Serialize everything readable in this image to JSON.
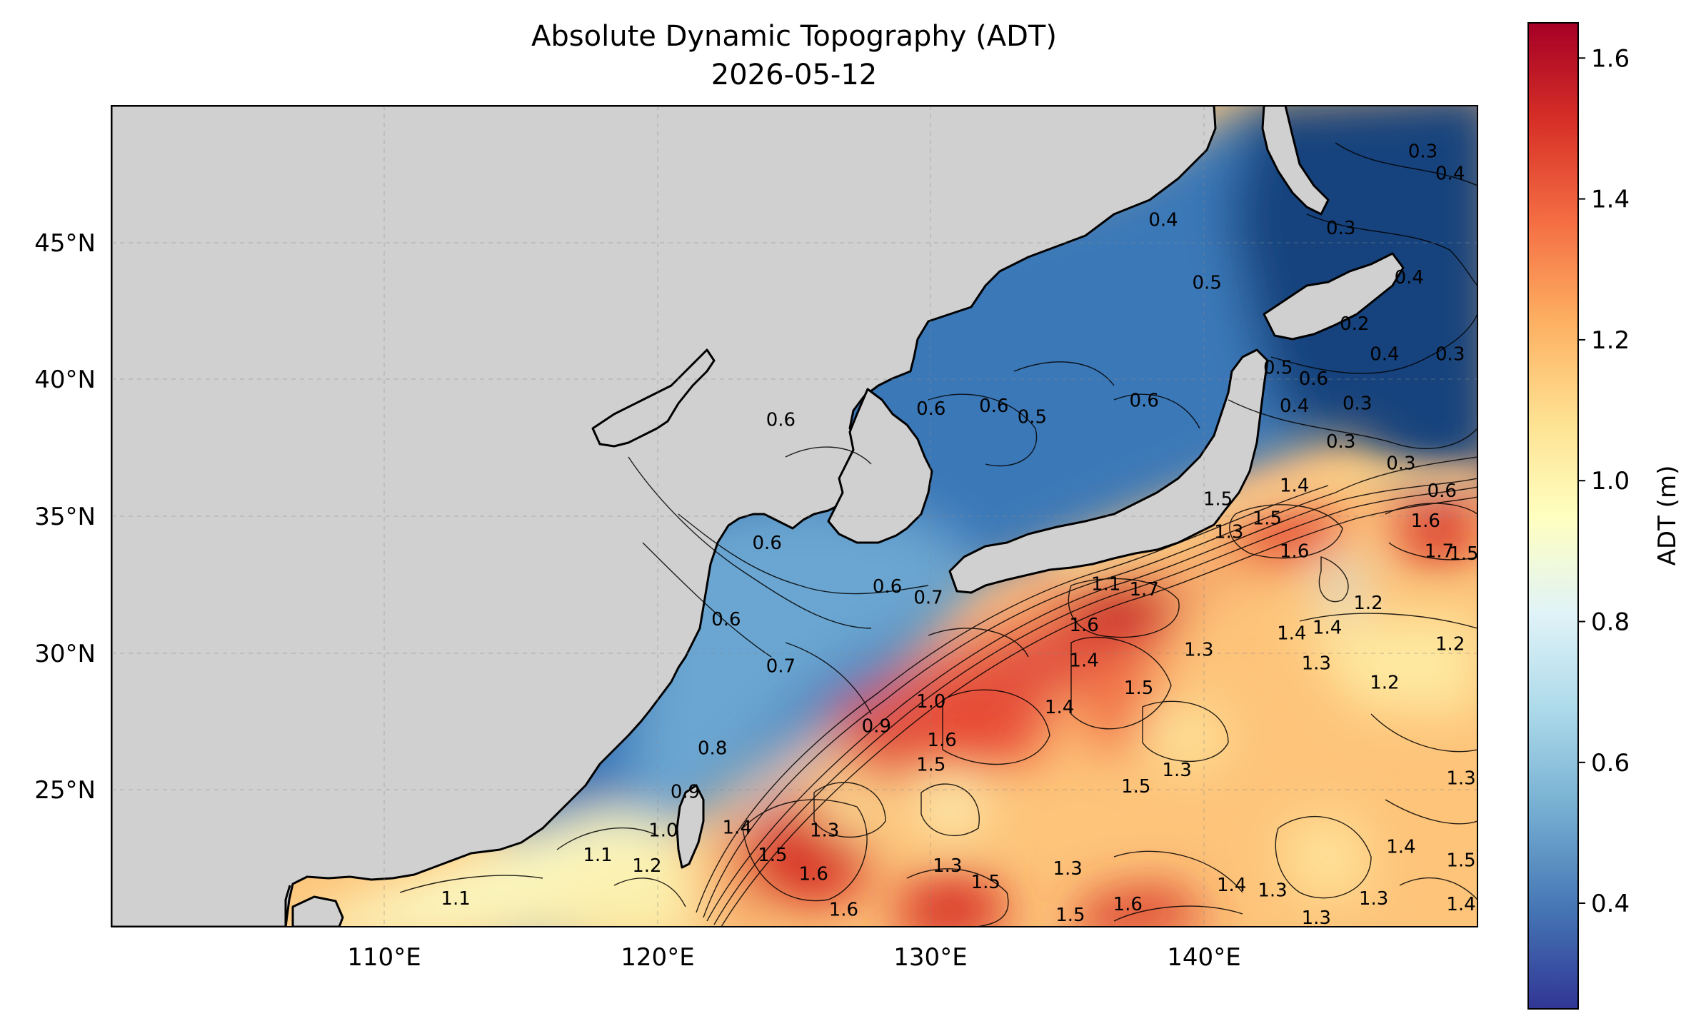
{
  "chart_data": {
    "type": "heatmap",
    "title": "Absolute Dynamic Topography (ADT)",
    "subtitle": "2026-05-12",
    "x_axis": {
      "range": [
        100,
        150
      ],
      "ticks": [
        {
          "value": 110,
          "label": "110°E"
        },
        {
          "value": 120,
          "label": "120°E"
        },
        {
          "value": 130,
          "label": "130°E"
        },
        {
          "value": 140,
          "label": "140°E"
        }
      ]
    },
    "y_axis": {
      "range": [
        20,
        50
      ],
      "ticks": [
        {
          "value": 25,
          "label": "25°N"
        },
        {
          "value": 30,
          "label": "30°N"
        },
        {
          "value": 35,
          "label": "35°N"
        },
        {
          "value": 40,
          "label": "40°N"
        },
        {
          "value": 45,
          "label": "45°N"
        }
      ]
    },
    "gridlines": true,
    "colorbar": {
      "label": "ADT (m)",
      "min": 0.25,
      "max": 1.65,
      "placement": "right",
      "colormap": "RdYlBu_r",
      "stops": [
        "#313695",
        "#4575b4",
        "#74add1",
        "#abd9e9",
        "#e0f3f8",
        "#ffffbf",
        "#fee090",
        "#fdae61",
        "#f46d43",
        "#d73027",
        "#a50026"
      ],
      "ticks": [
        {
          "value": 0.4,
          "label": "0.4"
        },
        {
          "value": 0.6,
          "label": "0.6"
        },
        {
          "value": 0.8,
          "label": "0.8"
        },
        {
          "value": 1.0,
          "label": "1.0"
        },
        {
          "value": 1.2,
          "label": "1.2"
        },
        {
          "value": 1.4,
          "label": "1.4"
        },
        {
          "value": 1.6,
          "label": "1.6"
        }
      ]
    },
    "land_color": "#d0d0d0",
    "contour_labels": [
      {
        "lon": 124.5,
        "lat": 38.5,
        "text": "0.6"
      },
      {
        "lon": 124.0,
        "lat": 34.0,
        "text": "0.6"
      },
      {
        "lon": 122.5,
        "lat": 31.2,
        "text": "0.6"
      },
      {
        "lon": 124.5,
        "lat": 29.5,
        "text": "0.7"
      },
      {
        "lon": 122.0,
        "lat": 26.5,
        "text": "0.8"
      },
      {
        "lon": 121.0,
        "lat": 24.9,
        "text": "0.9"
      },
      {
        "lon": 128.0,
        "lat": 27.3,
        "text": "0.9"
      },
      {
        "lon": 128.4,
        "lat": 32.4,
        "text": "0.6"
      },
      {
        "lon": 129.9,
        "lat": 32.0,
        "text": "0.7"
      },
      {
        "lon": 130.0,
        "lat": 28.2,
        "text": "1.0"
      },
      {
        "lon": 130.0,
        "lat": 38.9,
        "text": "0.6"
      },
      {
        "lon": 132.3,
        "lat": 39.0,
        "text": "0.6"
      },
      {
        "lon": 133.7,
        "lat": 38.6,
        "text": "0.5"
      },
      {
        "lon": 137.8,
        "lat": 39.2,
        "text": "0.6"
      },
      {
        "lon": 140.1,
        "lat": 43.5,
        "text": "0.5"
      },
      {
        "lon": 138.5,
        "lat": 45.8,
        "text": "0.4"
      },
      {
        "lon": 142.7,
        "lat": 40.4,
        "text": "0.5"
      },
      {
        "lon": 144.0,
        "lat": 40.0,
        "text": "0.6"
      },
      {
        "lon": 143.3,
        "lat": 39.0,
        "text": "0.4"
      },
      {
        "lon": 145.6,
        "lat": 39.1,
        "text": "0.3"
      },
      {
        "lon": 145.0,
        "lat": 37.7,
        "text": "0.3"
      },
      {
        "lon": 147.2,
        "lat": 36.9,
        "text": "0.3"
      },
      {
        "lon": 148.7,
        "lat": 35.9,
        "text": "0.6"
      },
      {
        "lon": 145.5,
        "lat": 42.0,
        "text": "0.2"
      },
      {
        "lon": 146.6,
        "lat": 40.9,
        "text": "0.4"
      },
      {
        "lon": 147.5,
        "lat": 43.7,
        "text": "0.4"
      },
      {
        "lon": 148.0,
        "lat": 48.3,
        "text": "0.3"
      },
      {
        "lon": 149.0,
        "lat": 47.5,
        "text": "0.4"
      },
      {
        "lon": 145.0,
        "lat": 45.5,
        "text": "0.3"
      },
      {
        "lon": 149.0,
        "lat": 40.9,
        "text": "0.3"
      },
      {
        "lon": 136.4,
        "lat": 32.5,
        "text": "1.1"
      },
      {
        "lon": 137.8,
        "lat": 32.3,
        "text": "1.7"
      },
      {
        "lon": 135.6,
        "lat": 31.0,
        "text": "1.6"
      },
      {
        "lon": 135.6,
        "lat": 29.7,
        "text": "1.4"
      },
      {
        "lon": 134.7,
        "lat": 28.0,
        "text": "1.4"
      },
      {
        "lon": 137.6,
        "lat": 28.7,
        "text": "1.5"
      },
      {
        "lon": 139.8,
        "lat": 30.1,
        "text": "1.3"
      },
      {
        "lon": 140.9,
        "lat": 34.4,
        "text": "1.3"
      },
      {
        "lon": 140.5,
        "lat": 35.6,
        "text": "1.5"
      },
      {
        "lon": 143.3,
        "lat": 36.1,
        "text": "1.4"
      },
      {
        "lon": 142.3,
        "lat": 34.9,
        "text": "1.5"
      },
      {
        "lon": 143.3,
        "lat": 33.7,
        "text": "1.6"
      },
      {
        "lon": 148.1,
        "lat": 34.8,
        "text": "1.6"
      },
      {
        "lon": 148.6,
        "lat": 33.7,
        "text": "1.7"
      },
      {
        "lon": 149.5,
        "lat": 33.6,
        "text": "1.5"
      },
      {
        "lon": 146.0,
        "lat": 31.8,
        "text": "1.2"
      },
      {
        "lon": 143.2,
        "lat": 30.7,
        "text": "1.4"
      },
      {
        "lon": 144.5,
        "lat": 30.9,
        "text": "1.4"
      },
      {
        "lon": 144.1,
        "lat": 29.6,
        "text": "1.3"
      },
      {
        "lon": 149.0,
        "lat": 30.3,
        "text": "1.2"
      },
      {
        "lon": 146.6,
        "lat": 28.9,
        "text": "1.2"
      },
      {
        "lon": 139.0,
        "lat": 25.7,
        "text": "1.3"
      },
      {
        "lon": 137.5,
        "lat": 25.1,
        "text": "1.5"
      },
      {
        "lon": 130.4,
        "lat": 26.8,
        "text": "1.6"
      },
      {
        "lon": 130.0,
        "lat": 25.9,
        "text": "1.5"
      },
      {
        "lon": 122.9,
        "lat": 23.6,
        "text": "1.4"
      },
      {
        "lon": 124.2,
        "lat": 22.6,
        "text": "1.5"
      },
      {
        "lon": 126.1,
        "lat": 23.5,
        "text": "1.3"
      },
      {
        "lon": 125.7,
        "lat": 21.9,
        "text": "1.6"
      },
      {
        "lon": 126.8,
        "lat": 20.6,
        "text": "1.6"
      },
      {
        "lon": 130.6,
        "lat": 22.2,
        "text": "1.3"
      },
      {
        "lon": 132.0,
        "lat": 21.6,
        "text": "1.5"
      },
      {
        "lon": 135.1,
        "lat": 20.4,
        "text": "1.5"
      },
      {
        "lon": 137.2,
        "lat": 20.8,
        "text": "1.6"
      },
      {
        "lon": 135.0,
        "lat": 22.1,
        "text": "1.3"
      },
      {
        "lon": 141.0,
        "lat": 21.5,
        "text": "1.4"
      },
      {
        "lon": 142.5,
        "lat": 21.3,
        "text": "1.3"
      },
      {
        "lon": 144.1,
        "lat": 20.3,
        "text": "1.3"
      },
      {
        "lon": 146.2,
        "lat": 21.0,
        "text": "1.3"
      },
      {
        "lon": 147.2,
        "lat": 22.9,
        "text": "1.4"
      },
      {
        "lon": 149.4,
        "lat": 22.4,
        "text": "1.5"
      },
      {
        "lon": 149.4,
        "lat": 25.4,
        "text": "1.3"
      },
      {
        "lon": 149.4,
        "lat": 20.8,
        "text": "1.4"
      },
      {
        "lon": 117.8,
        "lat": 22.6,
        "text": "1.1"
      },
      {
        "lon": 112.6,
        "lat": 21.0,
        "text": "1.1"
      },
      {
        "lon": 119.6,
        "lat": 22.2,
        "text": "1.2"
      },
      {
        "lon": 120.2,
        "lat": 23.5,
        "text": "1.0"
      }
    ]
  }
}
